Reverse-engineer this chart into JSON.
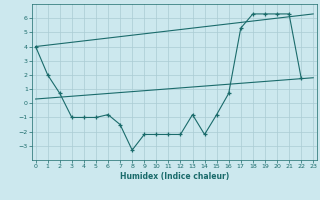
{
  "xlabel": "Humidex (Indice chaleur)",
  "bg_color": "#cce8ee",
  "line_color": "#1a6b6b",
  "grid_color": "#aaccd4",
  "jagged_x": [
    0,
    1,
    2,
    3,
    4,
    5,
    6,
    7,
    8,
    9,
    10,
    11,
    12,
    13,
    14,
    15,
    16,
    17,
    18,
    19,
    20,
    21,
    22
  ],
  "jagged_y": [
    4.0,
    2.0,
    0.7,
    -1.0,
    -1.0,
    -1.0,
    -0.8,
    -1.5,
    -3.3,
    -2.2,
    -2.2,
    -2.2,
    -2.2,
    -0.8,
    -2.2,
    -0.8,
    0.7,
    5.3,
    6.3,
    6.3,
    6.3,
    6.3,
    1.8
  ],
  "trend1_x": [
    0,
    23
  ],
  "trend1_y": [
    4.0,
    6.3
  ],
  "trend2_x": [
    0,
    23
  ],
  "trend2_y": [
    0.3,
    1.8
  ],
  "ylim": [
    -4.0,
    7.0
  ],
  "yticks": [
    -3,
    -2,
    -1,
    0,
    1,
    2,
    3,
    4,
    5,
    6
  ],
  "xticks": [
    0,
    1,
    2,
    3,
    4,
    5,
    6,
    7,
    8,
    9,
    10,
    11,
    12,
    13,
    14,
    15,
    16,
    17,
    18,
    19,
    20,
    21,
    22,
    23
  ]
}
